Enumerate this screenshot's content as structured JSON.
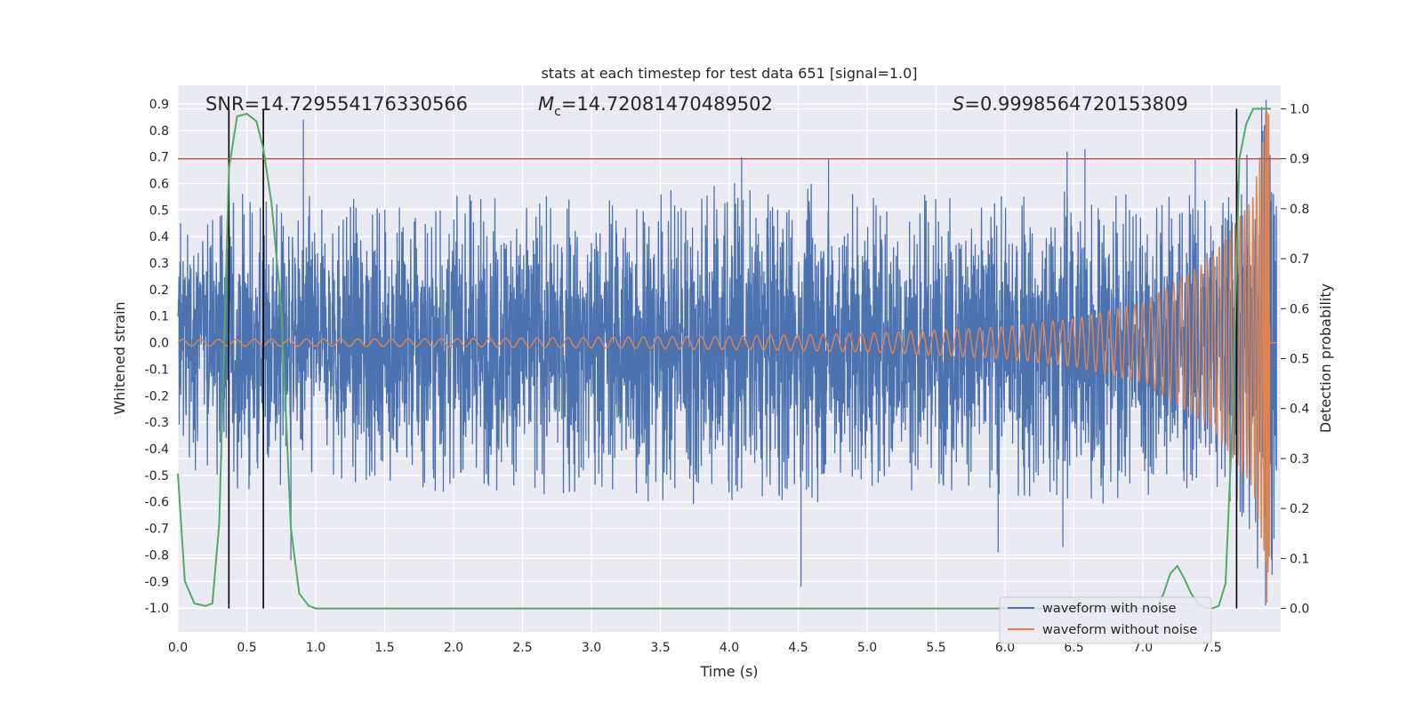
{
  "chart_data": {
    "type": "line",
    "title": "stats at each timestep for test data 651 [signal=1.0]",
    "xlabel": "Time (s)",
    "ylabel": "Whitened strain",
    "y2label": "Detection probability",
    "xlim": [
      0.0,
      8.0
    ],
    "ylim": [
      -1.09,
      0.97
    ],
    "y2lim": [
      -0.047,
      1.047
    ],
    "xticks": [
      "0.0",
      "0.5",
      "1.0",
      "1.5",
      "2.0",
      "2.5",
      "3.0",
      "3.5",
      "4.0",
      "4.5",
      "5.0",
      "5.5",
      "6.0",
      "6.5",
      "7.0",
      "7.5"
    ],
    "yticks": [
      "-1.0",
      "-0.9",
      "-0.8",
      "-0.7",
      "-0.6",
      "-0.5",
      "-0.4",
      "-0.3",
      "-0.2",
      "-0.1",
      "0.0",
      "0.1",
      "0.2",
      "0.3",
      "0.4",
      "0.5",
      "0.6",
      "0.7",
      "0.8",
      "0.9"
    ],
    "y2ticks": [
      "0.0",
      "0.1",
      "0.2",
      "0.3",
      "0.4",
      "0.5",
      "0.6",
      "0.7",
      "0.8",
      "0.9",
      "1.0"
    ],
    "annotations": {
      "snr": "SNR=14.729554176330566",
      "mc_symbol": "M",
      "mc_sub": "c",
      "mc_value": "=14.72081470489502",
      "s_symbol": "S",
      "s_value": "=0.9998564720153809"
    },
    "threshold_line": {
      "y2": 0.9,
      "color": "#c44e52"
    },
    "vertical_markers": [
      0.37,
      0.62,
      7.68
    ],
    "series": [
      {
        "name": "waveform with noise",
        "color": "#4c72b0",
        "axis": "left",
        "description": "noisy whitened strain, roughly symmetric, amplitude mostly within +/-0.6",
        "envelope_upper": [
          [
            0.0,
            0.45
          ],
          [
            0.5,
            0.6
          ],
          [
            1.0,
            0.55
          ],
          [
            2.0,
            0.6
          ],
          [
            3.0,
            0.6
          ],
          [
            4.0,
            0.65
          ],
          [
            5.0,
            0.6
          ],
          [
            6.0,
            0.6
          ],
          [
            6.5,
            0.65
          ],
          [
            7.0,
            0.6
          ],
          [
            7.5,
            0.6
          ],
          [
            7.93,
            0.6
          ]
        ],
        "spikes": [
          [
            0.02,
            0.45
          ],
          [
            0.91,
            0.84
          ],
          [
            0.82,
            -0.82
          ],
          [
            4.52,
            -0.92
          ],
          [
            4.09,
            0.7
          ],
          [
            4.72,
            0.69
          ],
          [
            6.45,
            0.72
          ],
          [
            6.58,
            0.73
          ],
          [
            7.38,
            0.69
          ],
          [
            7.89,
            -0.99
          ],
          [
            6.42,
            -0.77
          ],
          [
            5.95,
            -0.79
          ]
        ]
      },
      {
        "name": "waveform without noise",
        "color": "#dd8452",
        "axis": "left",
        "description": "chirp signal growing in amplitude and frequency, merger near 7.9 s",
        "amplitude_points": [
          [
            0.0,
            0.012
          ],
          [
            2.0,
            0.015
          ],
          [
            4.0,
            0.025
          ],
          [
            5.0,
            0.035
          ],
          [
            6.0,
            0.06
          ],
          [
            6.5,
            0.09
          ],
          [
            7.0,
            0.15
          ],
          [
            7.5,
            0.32
          ],
          [
            7.8,
            0.55
          ],
          [
            7.9,
            0.87
          ]
        ],
        "merger_time": 7.92
      },
      {
        "name": "detection probability",
        "color": "#55a868",
        "axis": "right",
        "x": [
          0.0,
          0.05,
          0.12,
          0.2,
          0.25,
          0.3,
          0.37,
          0.43,
          0.5,
          0.57,
          0.62,
          0.68,
          0.75,
          0.82,
          0.88,
          0.95,
          1.0,
          7.1,
          7.15,
          7.2,
          7.25,
          7.3,
          7.35,
          7.4,
          7.45,
          7.5,
          7.55,
          7.6,
          7.65,
          7.7,
          7.75,
          7.8,
          7.85,
          7.93
        ],
        "values": [
          0.27,
          0.055,
          0.01,
          0.005,
          0.01,
          0.17,
          0.88,
          0.985,
          0.99,
          0.975,
          0.92,
          0.81,
          0.6,
          0.16,
          0.03,
          0.005,
          0.0,
          0.0,
          0.03,
          0.07,
          0.085,
          0.06,
          0.03,
          0.01,
          0.002,
          0.0,
          0.005,
          0.05,
          0.38,
          0.9,
          0.97,
          1.0,
          1.0,
          1.0
        ]
      }
    ],
    "legend": {
      "position": "bottom-right",
      "entries": [
        "waveform with noise",
        "waveform without noise"
      ]
    },
    "grid": true
  }
}
